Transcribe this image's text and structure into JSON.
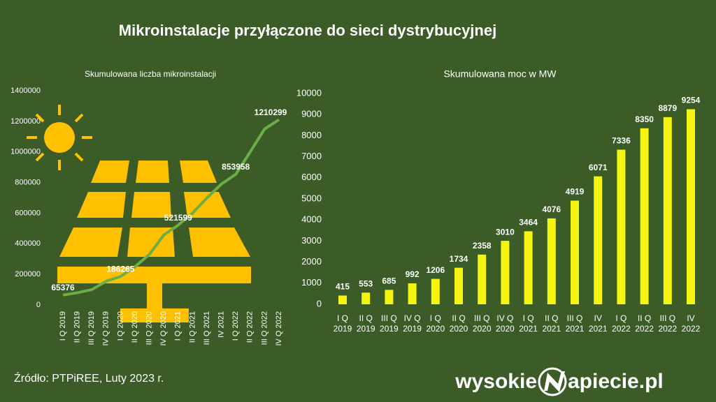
{
  "title": "Mikroinstalacje przyłączone do sieci dystrybucyjnej",
  "source": "Źródło: PTPiREE, Luty 2023 r.",
  "logo": {
    "left": "wysokie",
    "right": "apiecie.pl"
  },
  "chart_data": [
    {
      "type": "line",
      "title": "Skumulowana liczba mikroinstalacji",
      "color": "#6cae45",
      "categories": [
        "I Q 2019",
        "II Q 2019",
        "III Q 2019",
        "IV Q 2019",
        "I Q 2020",
        "II Q 2020",
        "III Q 2020",
        "IV Q 2020",
        "I Q 2021",
        "II Q 2021",
        "III Q 2021",
        "IV 2021",
        "I Q 2022",
        "II Q 2022",
        "III Q 2022",
        "IV Q 2022"
      ],
      "values": [
        65376,
        80000,
        100000,
        155000,
        186265,
        250000,
        330000,
        457000,
        521599,
        600000,
        700000,
        790000,
        853958,
        1000000,
        1150000,
        1210299
      ],
      "value_labels": [
        "65376",
        null,
        null,
        null,
        "186265",
        null,
        null,
        null,
        "521599",
        null,
        null,
        null,
        "853958",
        null,
        null,
        "1210299"
      ],
      "ylim": [
        0,
        1400000
      ],
      "yticks": [
        0,
        200000,
        400000,
        600000,
        800000,
        1000000,
        1200000,
        1400000
      ]
    },
    {
      "type": "bar",
      "title": "Skumulowana moc w MW",
      "color": "#f5f50f",
      "categories": [
        "I Q 2019",
        "II Q 2019",
        "III Q 2019",
        "IV Q 2019",
        "I Q 2020",
        "II Q 2020",
        "III Q 2020",
        "IV Q 2020",
        "I Q 2021",
        "II Q 2021",
        "III Q 2021",
        "IV 2021",
        "I Q 2022",
        "II Q 2022",
        "III Q 2022",
        "IV 2022"
      ],
      "values": [
        415,
        553,
        685,
        992,
        1206,
        1734,
        2358,
        3010,
        3464,
        4076,
        4919,
        6071,
        7336,
        8350,
        8879,
        9254
      ],
      "ylim": [
        0,
        10000
      ],
      "yticks": [
        0,
        1000,
        2000,
        3000,
        4000,
        5000,
        6000,
        7000,
        8000,
        9000,
        10000
      ]
    }
  ]
}
